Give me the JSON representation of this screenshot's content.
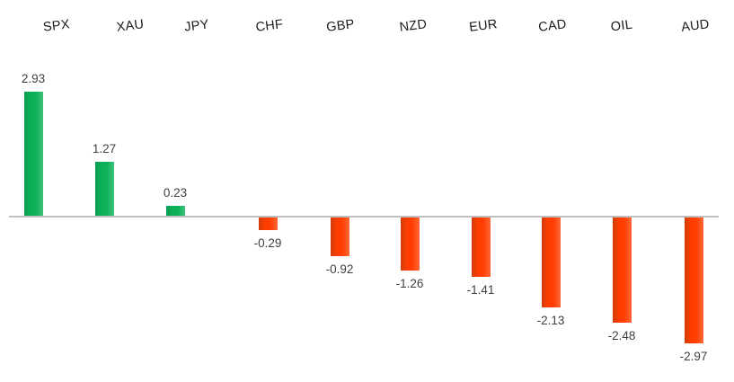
{
  "chart_data": {
    "type": "bar",
    "title": "",
    "xlabel": "",
    "ylabel": "",
    "categories": [
      "SPX",
      "XAU",
      "JPY",
      "CHF",
      "GBP",
      "NZD",
      "EUR",
      "CAD",
      "OIL",
      "AUD"
    ],
    "values": [
      2.93,
      1.27,
      0.23,
      -0.29,
      -0.92,
      -1.26,
      -1.41,
      -2.13,
      -2.48,
      -2.97
    ],
    "value_labels": [
      "2.93",
      "1.27",
      "0.23",
      "-0.29",
      "-0.92",
      "-1.26",
      "-1.41",
      "-2.13",
      "-2.48",
      "-2.97"
    ],
    "ylim": [
      -3.2,
      3.2
    ],
    "grid": false,
    "legend": false,
    "data_labels": "outside-end",
    "category_labels_position": "top",
    "colors": {
      "positive_bar": "#0bb156",
      "negative_bar": "#ff3d00",
      "axis_line": "#bfbfbf",
      "value_label_text": "#3f3f3f",
      "category_label_text": "#1a1a1a",
      "background": "#ffffff"
    }
  }
}
